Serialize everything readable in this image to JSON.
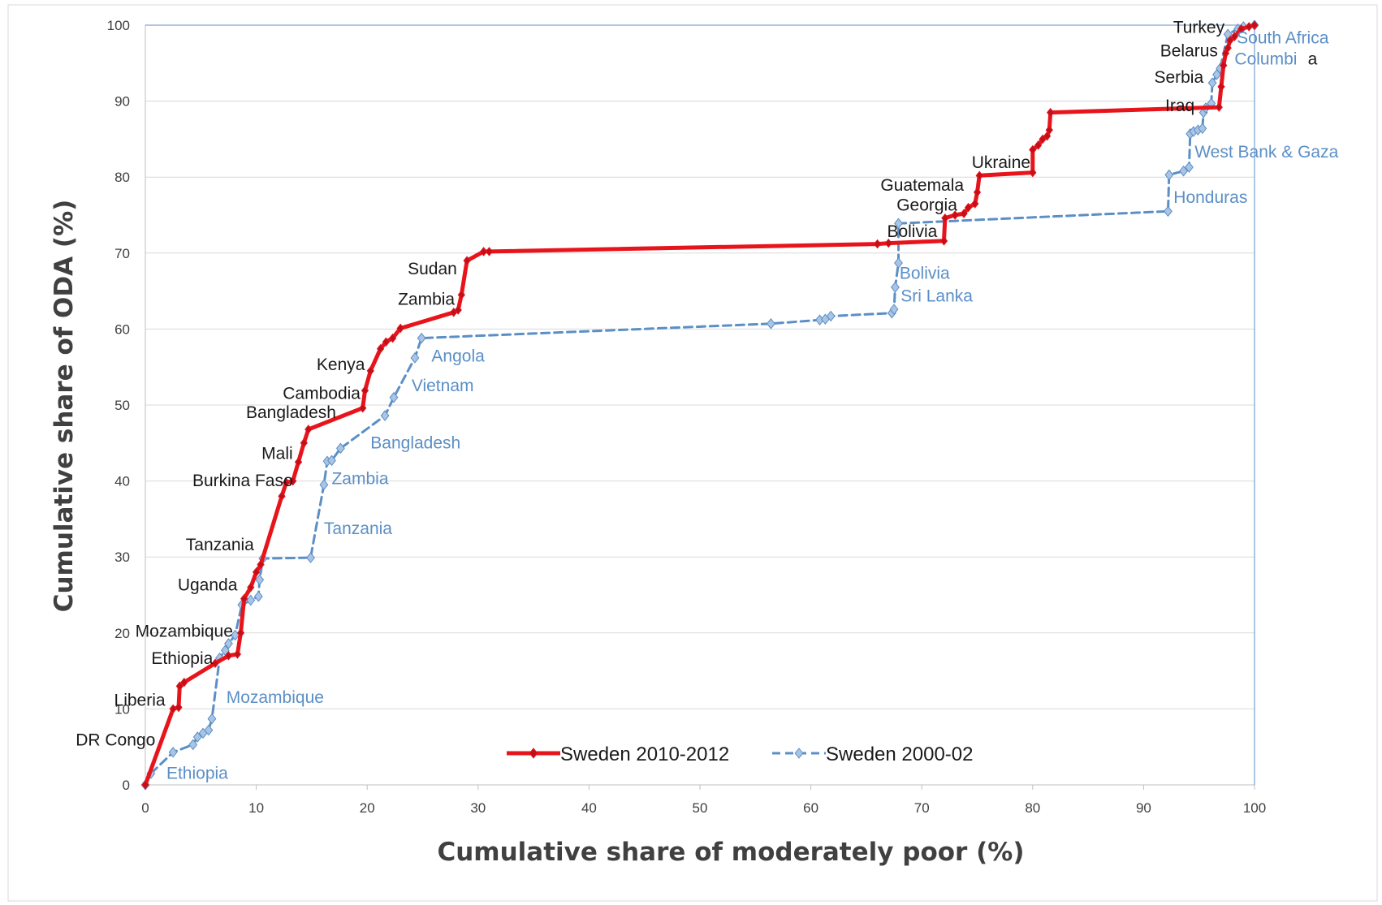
{
  "chart_data": {
    "type": "line",
    "title": "",
    "xlabel": "Cumulative share  of moderately poor  (%)",
    "ylabel": "Cumulative share of ODA (%)",
    "xlim": [
      0,
      100
    ],
    "ylim": [
      0,
      100
    ],
    "x_ticks": [
      "0",
      "10",
      "20",
      "30",
      "40",
      "50",
      "60",
      "70",
      "80",
      "90",
      "100"
    ],
    "y_ticks": [
      "0",
      "10",
      "20",
      "30",
      "40",
      "50",
      "60",
      "70",
      "80",
      "90",
      "100"
    ],
    "grid": "horizontal",
    "legend_position": "bottom-center",
    "series": [
      {
        "name": "Sweden 2010-2012",
        "color": "#e8141b",
        "style": "solid",
        "points": [
          [
            0,
            0
          ],
          [
            2.5,
            10
          ],
          [
            3,
            10.2
          ],
          [
            3.1,
            13
          ],
          [
            3.5,
            13.5
          ],
          [
            6.3,
            16
          ],
          [
            7.5,
            17
          ],
          [
            8.3,
            17.2
          ],
          [
            8.6,
            20
          ],
          [
            8.9,
            24.5
          ],
          [
            9.5,
            26
          ],
          [
            10,
            28
          ],
          [
            10.4,
            29
          ],
          [
            12.3,
            38
          ],
          [
            12.7,
            39.8
          ],
          [
            13.3,
            40
          ],
          [
            13.8,
            42.5
          ],
          [
            14.3,
            45
          ],
          [
            14.7,
            46.8
          ],
          [
            19.6,
            49.6
          ],
          [
            19.8,
            51.9
          ],
          [
            20.3,
            54.5
          ],
          [
            21.2,
            57.4
          ],
          [
            21.7,
            58.3
          ],
          [
            22.3,
            58.8
          ],
          [
            23,
            60.1
          ],
          [
            27.8,
            62.2
          ],
          [
            28.2,
            62.5
          ],
          [
            28.5,
            64.5
          ],
          [
            29,
            69
          ],
          [
            30.5,
            70.2
          ],
          [
            31,
            70.2
          ],
          [
            66,
            71.2
          ],
          [
            67,
            71.3
          ],
          [
            72,
            71.6
          ],
          [
            72.1,
            74.6
          ],
          [
            73,
            75
          ],
          [
            73.8,
            75.2
          ],
          [
            74.2,
            76
          ],
          [
            74.8,
            76.5
          ],
          [
            75,
            78
          ],
          [
            75.2,
            80.2
          ],
          [
            80,
            80.6
          ],
          [
            80,
            83.6
          ],
          [
            80.5,
            84.2
          ],
          [
            80.9,
            85
          ],
          [
            81.3,
            85.4
          ],
          [
            81.5,
            86.2
          ],
          [
            81.6,
            88.5
          ],
          [
            96.8,
            89.2
          ],
          [
            97,
            91.9
          ],
          [
            97.2,
            94.7
          ],
          [
            97.4,
            96.3
          ],
          [
            97.6,
            97
          ],
          [
            97.8,
            98
          ],
          [
            98.2,
            98.5
          ],
          [
            98.8,
            99.5
          ],
          [
            99.5,
            99.8
          ],
          [
            100,
            100
          ]
        ]
      },
      {
        "name": "Sweden 2000-02",
        "color": "#5b8fc6",
        "style": "dashed",
        "points": [
          [
            0,
            0
          ],
          [
            0.5,
            1.5
          ],
          [
            2.5,
            4.3
          ],
          [
            4.3,
            5.3
          ],
          [
            4.7,
            6.3
          ],
          [
            5.2,
            6.8
          ],
          [
            5.7,
            7.2
          ],
          [
            6,
            8.7
          ],
          [
            6.7,
            16.7
          ],
          [
            7.2,
            17.7
          ],
          [
            7.5,
            18.6
          ],
          [
            8.1,
            19.7
          ],
          [
            8.7,
            23.7
          ],
          [
            9.5,
            24.3
          ],
          [
            10.2,
            24.8
          ],
          [
            10.3,
            27
          ],
          [
            10.6,
            29.8
          ],
          [
            14.9,
            29.9
          ],
          [
            16.1,
            39.5
          ],
          [
            16.4,
            42.6
          ],
          [
            16.8,
            42.7
          ],
          [
            17.6,
            44.3
          ],
          [
            21.6,
            48.6
          ],
          [
            22.4,
            51
          ],
          [
            24.3,
            56.2
          ],
          [
            24.9,
            58.8
          ],
          [
            56.4,
            60.7
          ],
          [
            60.8,
            61.2
          ],
          [
            61.3,
            61.3
          ],
          [
            61.8,
            61.7
          ],
          [
            67.3,
            62.1
          ],
          [
            67.5,
            62.6
          ],
          [
            67.6,
            65.5
          ],
          [
            67.9,
            68.7
          ],
          [
            67.9,
            73.9
          ],
          [
            92.2,
            75.5
          ],
          [
            92.3,
            80.3
          ],
          [
            93.6,
            80.8
          ],
          [
            94.1,
            81.3
          ],
          [
            94.2,
            85.7
          ],
          [
            94.5,
            86
          ],
          [
            94.9,
            86.2
          ],
          [
            95.3,
            86.4
          ],
          [
            95.4,
            88.5
          ],
          [
            95.6,
            89.1
          ],
          [
            96.1,
            89.7
          ],
          [
            96.2,
            92.4
          ],
          [
            96.6,
            93.5
          ],
          [
            96.9,
            94.3
          ],
          [
            97.6,
            98.8
          ],
          [
            98.5,
            99.5
          ],
          [
            99,
            99.8
          ],
          [
            100,
            100
          ]
        ]
      }
    ],
    "annotations_red": [
      {
        "text": "DR Congo",
        "x": 0.9,
        "y": 5.2,
        "anchor": "end"
      },
      {
        "text": "Liberia",
        "x": 1.8,
        "y": 10.4,
        "anchor": "end"
      },
      {
        "text": "Ethiopia",
        "x": 6.1,
        "y": 15.9,
        "anchor": "end"
      },
      {
        "text": "Mozambique",
        "x": 7.9,
        "y": 19.5,
        "anchor": "end"
      },
      {
        "text": "Uganda",
        "x": 8.3,
        "y": 25.6,
        "anchor": "end"
      },
      {
        "text": "Tanzania",
        "x": 9.8,
        "y": 30.9,
        "anchor": "end"
      },
      {
        "text": "Burkina  Faso",
        "x": 13.3,
        "y": 39.3,
        "anchor": "end"
      },
      {
        "text": "Mali",
        "x": 13.3,
        "y": 42.9,
        "anchor": "end"
      },
      {
        "text": "Bangladesh",
        "x": 17.2,
        "y": 48.3,
        "anchor": "end"
      },
      {
        "text": "Cambodia",
        "x": 19.4,
        "y": 50.8,
        "anchor": "end"
      },
      {
        "text": "Kenya",
        "x": 19.8,
        "y": 54.6,
        "anchor": "end"
      },
      {
        "text": "Zambia",
        "x": 27.9,
        "y": 63.2,
        "anchor": "end"
      },
      {
        "text": "Sudan",
        "x": 28.1,
        "y": 67.2,
        "anchor": "end"
      },
      {
        "text": "Bolivia",
        "x": 71.4,
        "y": 72.1,
        "anchor": "end"
      },
      {
        "text": "Georgia",
        "x": 73.2,
        "y": 75.6,
        "anchor": "end"
      },
      {
        "text": "Guatemala",
        "x": 73.8,
        "y": 78.2,
        "anchor": "end"
      },
      {
        "text": "Ukraine",
        "x": 79.8,
        "y": 81.2,
        "anchor": "end"
      },
      {
        "text": "Iraq",
        "x": 94.6,
        "y": 88.7,
        "anchor": "end"
      },
      {
        "text": "Serbia",
        "x": 95.4,
        "y": 92.4,
        "anchor": "end"
      },
      {
        "text": "Belarus",
        "x": 96.7,
        "y": 95.9,
        "anchor": "end"
      },
      {
        "text": "Turkey",
        "x": 97.3,
        "y": 99.0,
        "anchor": "end"
      },
      {
        "text": "a",
        "x": 104.8,
        "y": 94.8,
        "anchor": "start"
      }
    ],
    "annotations_blue": [
      {
        "text": "Ethiopia",
        "x": 1.9,
        "y": 0.8,
        "anchor": "start"
      },
      {
        "text": "Mozambique",
        "x": 7.3,
        "y": 10.8,
        "anchor": "start"
      },
      {
        "text": "Tanzania",
        "x": 16.1,
        "y": 33.0,
        "anchor": "start"
      },
      {
        "text": "Zambia",
        "x": 16.8,
        "y": 39.6,
        "anchor": "start"
      },
      {
        "text": "Bangladesh",
        "x": 20.3,
        "y": 44.3,
        "anchor": "start"
      },
      {
        "text": "Vietnam",
        "x": 24.0,
        "y": 51.8,
        "anchor": "start"
      },
      {
        "text": "Angola",
        "x": 25.8,
        "y": 55.7,
        "anchor": "start"
      },
      {
        "text": "Sri Lanka",
        "x": 68.1,
        "y": 63.6,
        "anchor": "start"
      },
      {
        "text": "Bolivia",
        "x": 68.0,
        "y": 66.6,
        "anchor": "start"
      },
      {
        "text": "Honduras",
        "x": 92.7,
        "y": 76.6,
        "anchor": "start"
      },
      {
        "text": "West Bank & Gaza",
        "x": 94.6,
        "y": 82.6,
        "anchor": "start"
      },
      {
        "text": "Columbi",
        "x": 98.2,
        "y": 94.8,
        "anchor": "start"
      },
      {
        "text": "South Africa",
        "x": 98.4,
        "y": 97.6,
        "anchor": "start"
      }
    ]
  }
}
